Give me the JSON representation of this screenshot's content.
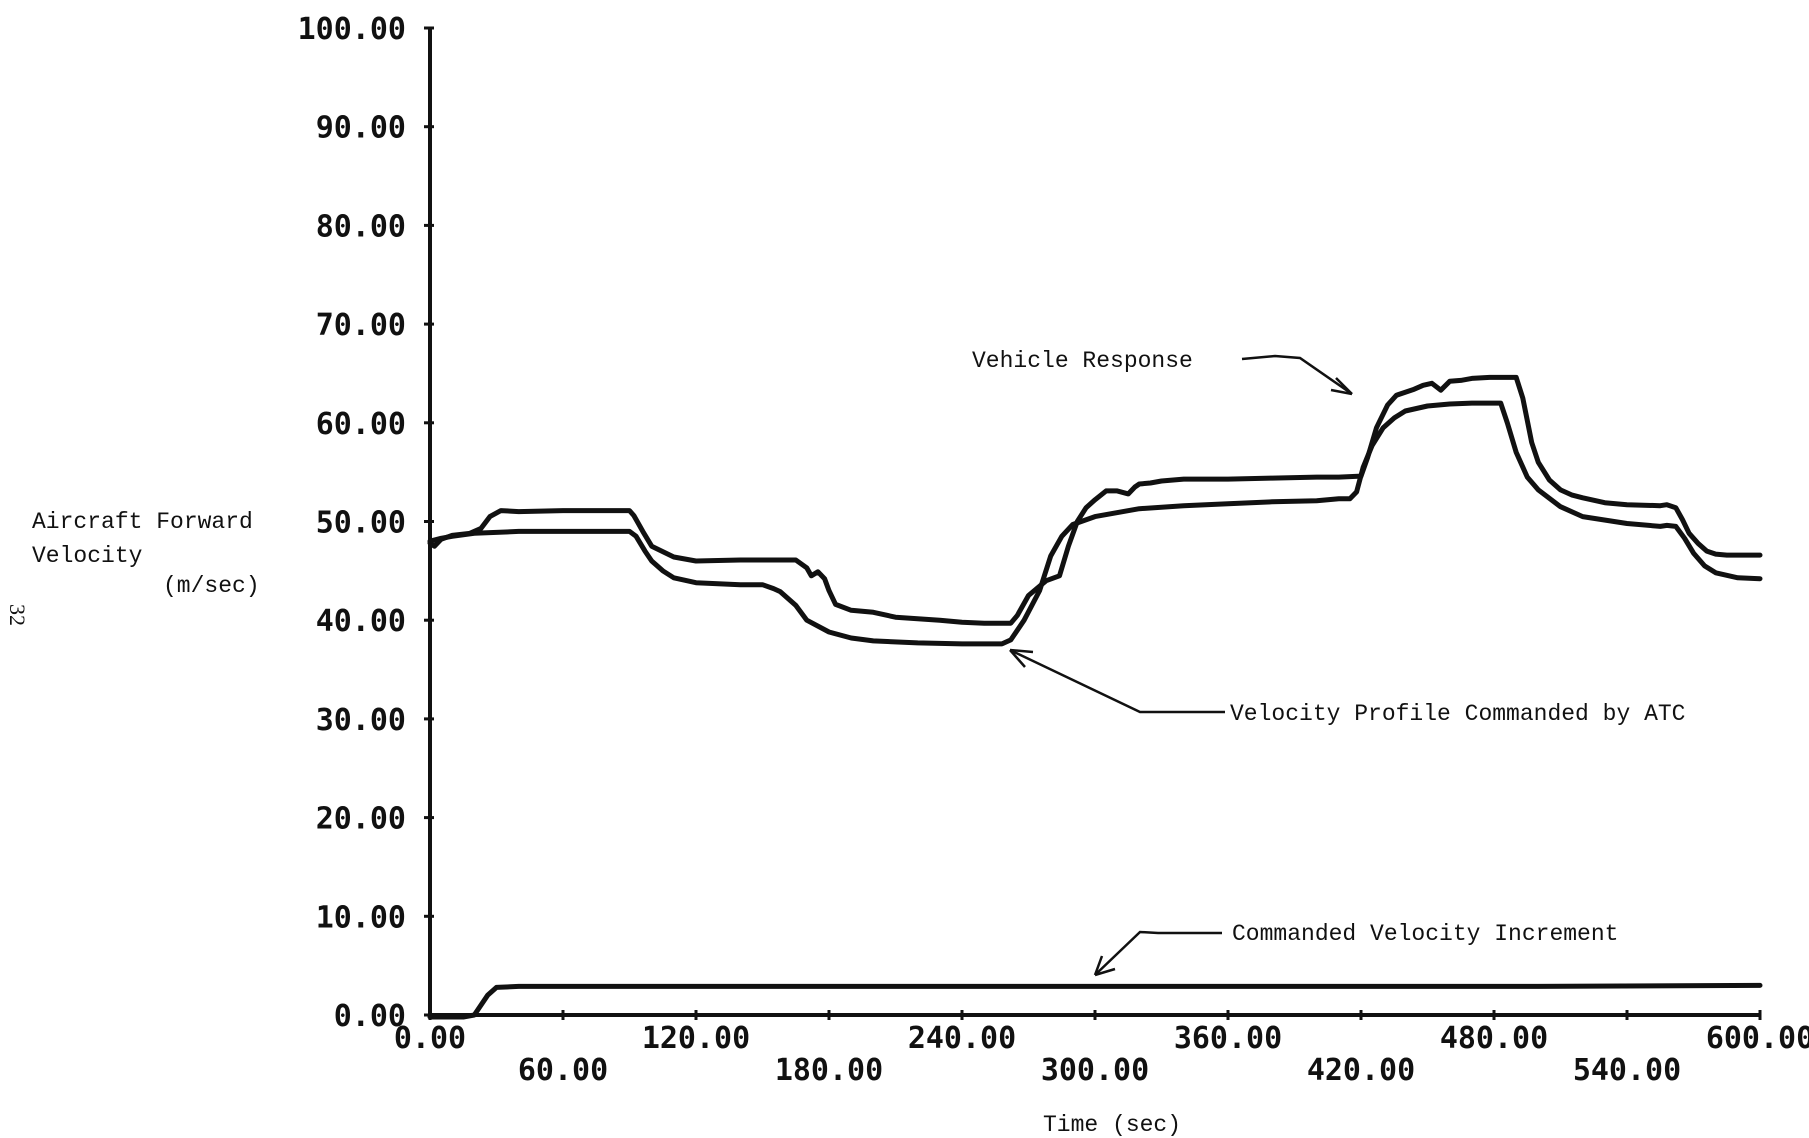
{
  "page_number": "32",
  "chart_data": {
    "type": "line",
    "xlabel": "Time (sec)",
    "ylabel": [
      "Aircraft Forward",
      "Velocity",
      "(m/sec)"
    ],
    "xlim": [
      0,
      600
    ],
    "ylim": [
      0,
      100
    ],
    "x_ticks": [
      "0.00",
      "60.00",
      "120.00",
      "180.00",
      "240.00",
      "300.00",
      "360.00",
      "420.00",
      "480.00",
      "540.00",
      "600.00"
    ],
    "x_tick_values": [
      0,
      60,
      120,
      180,
      240,
      300,
      360,
      420,
      480,
      540,
      600
    ],
    "y_ticks": [
      "0.00",
      "10.00",
      "20.00",
      "30.00",
      "40.00",
      "50.00",
      "60.00",
      "70.00",
      "80.00",
      "90.00",
      "100.00"
    ],
    "y_tick_values": [
      0,
      10,
      20,
      30,
      40,
      50,
      60,
      70,
      80,
      90,
      100
    ],
    "grid": false,
    "legend": "none",
    "annotations": {
      "vehicle_response": "Vehicle Response",
      "velocity_profile": "Velocity Profile Commanded by ATC",
      "increment": "Commanded Velocity Increment"
    },
    "series": [
      {
        "key": "vehicle_response",
        "x": [
          0,
          2,
          5,
          10,
          18,
          23,
          27,
          32,
          40,
          60,
          80,
          90,
          92,
          96,
          100,
          110,
          120,
          140,
          150,
          165,
          170,
          172,
          175,
          178,
          180,
          183,
          190,
          200,
          210,
          230,
          240,
          250,
          262,
          265,
          270,
          278,
          284,
          288,
          292,
          296,
          300,
          305,
          310,
          315,
          318,
          320,
          325,
          330,
          340,
          360,
          380,
          400,
          410,
          420,
          423,
          427,
          432,
          436,
          440,
          444,
          448,
          452,
          456,
          460,
          465,
          470,
          478,
          485,
          490,
          493,
          497,
          500,
          505,
          510,
          515,
          520,
          530,
          540,
          555,
          558,
          562,
          565,
          568,
          572,
          576,
          580,
          585,
          590,
          600
        ],
        "y": [
          47.8,
          47.5,
          48.2,
          48.6,
          48.8,
          49.3,
          50.5,
          51.1,
          51.0,
          51.1,
          51.1,
          51.1,
          50.6,
          49.0,
          47.5,
          46.4,
          46.0,
          46.1,
          46.1,
          46.1,
          45.3,
          44.5,
          44.9,
          44.2,
          43.0,
          41.6,
          41.0,
          40.8,
          40.3,
          40.0,
          39.8,
          39.7,
          39.7,
          40.5,
          42.5,
          44.0,
          44.5,
          47.5,
          50.0,
          51.4,
          52.2,
          53.1,
          53.1,
          52.8,
          53.5,
          53.8,
          53.9,
          54.1,
          54.3,
          54.3,
          54.4,
          54.5,
          54.5,
          54.6,
          56.5,
          59.5,
          61.8,
          62.8,
          63.1,
          63.4,
          63.8,
          64.0,
          63.3,
          64.2,
          64.3,
          64.5,
          64.6,
          64.6,
          64.6,
          62.5,
          58.0,
          56.0,
          54.2,
          53.2,
          52.7,
          52.4,
          51.9,
          51.7,
          51.6,
          51.7,
          51.4,
          50.2,
          48.8,
          47.8,
          47.0,
          46.7,
          46.6,
          46.6,
          46.6
        ]
      },
      {
        "key": "velocity_profile",
        "x": [
          0,
          5,
          10,
          20,
          40,
          60,
          80,
          90,
          93,
          97,
          100,
          105,
          110,
          120,
          140,
          150,
          155,
          158,
          165,
          170,
          180,
          190,
          200,
          220,
          240,
          250,
          255,
          258,
          262,
          268,
          275,
          280,
          285,
          290,
          300,
          320,
          340,
          360,
          380,
          400,
          410,
          415,
          418,
          421,
          425,
          430,
          435,
          440,
          450,
          460,
          470,
          480,
          483,
          486,
          490,
          495,
          500,
          510,
          520,
          540,
          555,
          558,
          562,
          566,
          570,
          575,
          580,
          590,
          600
        ],
        "y": [
          48.0,
          48.3,
          48.5,
          48.8,
          49.0,
          49.0,
          49.0,
          49.0,
          48.5,
          47.0,
          46.0,
          45.0,
          44.3,
          43.8,
          43.6,
          43.6,
          43.2,
          42.9,
          41.5,
          40.0,
          38.8,
          38.2,
          37.9,
          37.7,
          37.6,
          37.6,
          37.6,
          37.6,
          38.0,
          40.0,
          43.0,
          46.5,
          48.5,
          49.7,
          50.5,
          51.3,
          51.6,
          51.8,
          52.0,
          52.1,
          52.3,
          52.3,
          53.0,
          55.5,
          57.7,
          59.5,
          60.5,
          61.2,
          61.7,
          61.9,
          62.0,
          62.0,
          62.0,
          60.0,
          57.0,
          54.5,
          53.2,
          51.5,
          50.5,
          49.8,
          49.5,
          49.6,
          49.5,
          48.3,
          46.8,
          45.5,
          44.8,
          44.3,
          44.2
        ]
      },
      {
        "key": "increment",
        "x": [
          0,
          15,
          20,
          26,
          30,
          40,
          100,
          200,
          300,
          400,
          500,
          600
        ],
        "y": [
          -0.2,
          -0.2,
          0.0,
          2.0,
          2.8,
          2.9,
          2.9,
          2.9,
          2.9,
          2.9,
          2.9,
          3.0
        ]
      }
    ]
  }
}
